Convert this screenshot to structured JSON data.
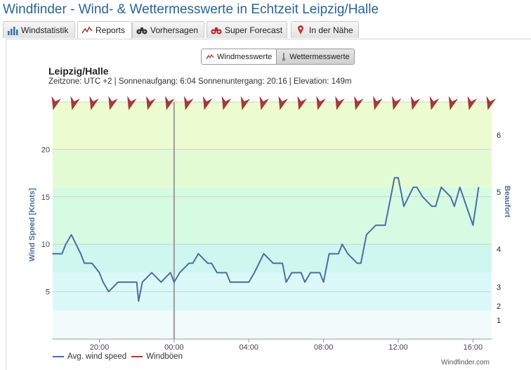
{
  "title": "Windfinder - Wind- & Wettermesswerte in Echtzeit Leipzig/Halle",
  "tabs": [
    {
      "label": "Windstatistik",
      "icon": "bar-chart-icon",
      "active": false
    },
    {
      "label": "Reports",
      "icon": "line-chart-icon",
      "active": true
    },
    {
      "label": "Vorhersagen",
      "icon": "binoculars-icon",
      "active": false
    },
    {
      "label": "Super Forecast",
      "icon": "binoculars-red-icon",
      "active": false
    },
    {
      "label": "In der Nähe",
      "icon": "map-pin-icon",
      "active": false
    }
  ],
  "toggle": {
    "wind_label": "Windmesswerte",
    "weather_label": "Wettermesswerte",
    "selected": "Windmesswerte"
  },
  "station": {
    "name": "Leipzig/Halle",
    "meta": "Zeitzone: UTC +2 | Sonnenaufgang: 6:04 Sonnenuntergang: 20:16 | Elevation: 149m"
  },
  "credit": "Windfinder.com",
  "colors": {
    "wind_line": "#4a6fa0",
    "gust_line": "#b03a3a",
    "arrow": "#a33a3a",
    "title": "#2a6496",
    "bands": [
      "#f1fbfb",
      "#dcf9f9",
      "#cdf7ef",
      "#d5fbe2",
      "#e4fcd4",
      "#ecfcd0"
    ]
  },
  "chart_data": {
    "type": "line",
    "ylabel": "Wind Speed [Knots]",
    "y2label": "Beaufort",
    "ylim": [
      0,
      25
    ],
    "yticks": [
      5,
      10,
      15,
      20
    ],
    "beaufort_ticks": [
      {
        "label": "1",
        "knots": 2
      },
      {
        "label": "2",
        "knots": 3.5
      },
      {
        "label": "3",
        "knots": 5.5
      },
      {
        "label": "4",
        "knots": 9.5
      },
      {
        "label": "5",
        "knots": 15.5
      },
      {
        "label": "6",
        "knots": 21.5
      }
    ],
    "beaufort_bands": [
      0,
      3,
      7,
      10,
      16,
      20,
      25
    ],
    "x_unit": "hours (relative to 00:00)",
    "xlim": [
      -3.25,
      8.5
    ],
    "xticks": [
      {
        "label": "20:00",
        "x": -2
      },
      {
        "label": "00:00",
        "x": 0
      },
      {
        "label": "04:00",
        "x": 2
      },
      {
        "label": "08:00",
        "x": 4
      },
      {
        "label": "12:00",
        "x": 6
      },
      {
        "label": "16:00",
        "x": 8
      }
    ],
    "marker_x": 0,
    "legend": [
      "Avg. wind speed",
      "Windböen"
    ],
    "legend_placement": "bottom-left",
    "grid": true,
    "arrow_direction_deg": 195,
    "series": [
      {
        "name": "Avg. wind speed",
        "points": [
          [
            -3.25,
            9
          ],
          [
            -3.0,
            9
          ],
          [
            -2.9,
            10
          ],
          [
            -2.75,
            11
          ],
          [
            -2.5,
            9
          ],
          [
            -2.4,
            8
          ],
          [
            -2.2,
            8
          ],
          [
            -2.0,
            7
          ],
          [
            -1.9,
            6
          ],
          [
            -1.75,
            5
          ],
          [
            -1.5,
            6
          ],
          [
            -1.0,
            6
          ],
          [
            -0.95,
            4
          ],
          [
            -0.85,
            6
          ],
          [
            -0.6,
            7
          ],
          [
            -0.35,
            6
          ],
          [
            -0.1,
            7
          ],
          [
            0,
            6
          ],
          [
            0.15,
            7
          ],
          [
            0.4,
            8
          ],
          [
            0.5,
            8
          ],
          [
            0.65,
            9
          ],
          [
            0.9,
            8
          ],
          [
            1.0,
            8
          ],
          [
            1.15,
            7
          ],
          [
            1.4,
            7
          ],
          [
            1.5,
            6
          ],
          [
            1.9,
            6
          ],
          [
            2.0,
            6
          ],
          [
            2.15,
            7
          ],
          [
            2.4,
            9
          ],
          [
            2.65,
            8
          ],
          [
            2.9,
            8
          ],
          [
            3.0,
            6
          ],
          [
            3.15,
            7
          ],
          [
            3.4,
            7
          ],
          [
            3.5,
            6
          ],
          [
            3.65,
            7
          ],
          [
            3.9,
            7
          ],
          [
            4.0,
            6
          ],
          [
            4.15,
            9
          ],
          [
            4.4,
            9
          ],
          [
            4.5,
            10
          ],
          [
            4.65,
            9
          ],
          [
            4.9,
            8
          ],
          [
            5.0,
            8
          ],
          [
            5.15,
            11
          ],
          [
            5.4,
            12
          ],
          [
            5.65,
            12
          ],
          [
            5.9,
            17
          ],
          [
            6.0,
            17
          ],
          [
            6.15,
            14
          ],
          [
            6.4,
            16
          ],
          [
            6.5,
            16
          ],
          [
            6.65,
            15
          ],
          [
            6.9,
            14
          ],
          [
            7.0,
            14
          ],
          [
            7.15,
            16
          ],
          [
            7.4,
            15
          ],
          [
            7.5,
            14
          ],
          [
            7.65,
            16
          ],
          [
            8.0,
            12
          ],
          [
            8.15,
            16
          ]
        ]
      }
    ]
  }
}
